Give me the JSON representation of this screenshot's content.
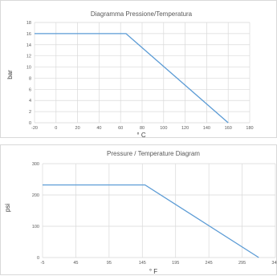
{
  "chart_data": [
    {
      "type": "line",
      "title": "Diagramma Pressione/Temperatura",
      "xlabel": "° C",
      "ylabel": "bar",
      "xlim": [
        -20,
        180
      ],
      "ylim": [
        0,
        18
      ],
      "xticks": [
        -20,
        0,
        20,
        40,
        60,
        80,
        100,
        120,
        140,
        160,
        180
      ],
      "yticks": [
        0,
        2,
        4,
        6,
        8,
        10,
        12,
        14,
        16,
        18
      ],
      "grid": true,
      "series": [
        {
          "x": [
            -20,
            65,
            160
          ],
          "y": [
            16,
            16,
            0
          ],
          "color": "#5b9bd5"
        }
      ]
    },
    {
      "type": "line",
      "title": "Pressure / Temperature Diagram",
      "xlabel": "° F",
      "ylabel": "psi",
      "xlim": [
        -5,
        345
      ],
      "ylim": [
        0,
        300
      ],
      "xticks": [
        -5,
        45,
        95,
        145,
        195,
        245,
        295,
        345
      ],
      "yticks": [
        0,
        100,
        200,
        300
      ],
      "grid": true,
      "series": [
        {
          "x": [
            -5,
            149,
            320
          ],
          "y": [
            232,
            232,
            0
          ],
          "color": "#5b9bd5"
        }
      ]
    }
  ]
}
